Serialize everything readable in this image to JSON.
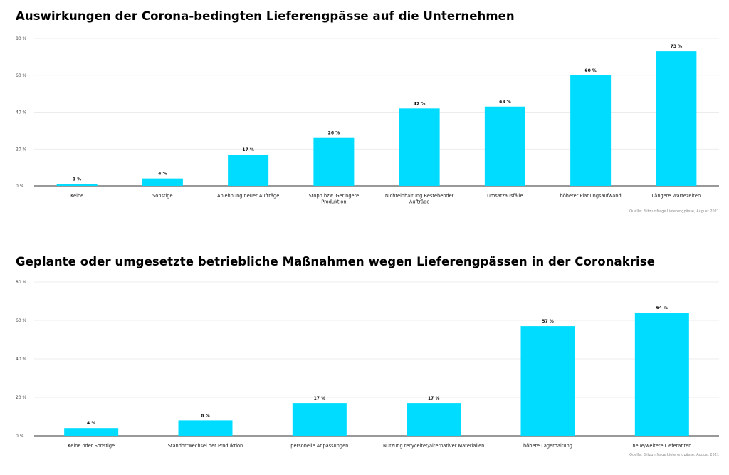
{
  "colors": {
    "bar": "#00dcff",
    "grid": "#e6e6e6",
    "axis": "#333333"
  },
  "chart_data": [
    {
      "type": "bar",
      "title": "Auswirkungen der Corona-bedingten Lieferengpässe auf die Unternehmen",
      "source": "Quelle: Blitzumfrage Lieferengpässe, August 2021",
      "categories": [
        "Keine",
        "Sonstige",
        "Ablehnung neuer Aufträge",
        "Stopp bzw. Geringere Produktion",
        "Nichteinhaltung Bestehender Aufträge",
        "Umsatzausfälle",
        "höherer Planungsaufwand",
        "Längere Wartezeiten"
      ],
      "values": [
        1,
        4,
        17,
        26,
        42,
        43,
        60,
        73
      ],
      "value_labels": [
        "1 %",
        "4 %",
        "17 %",
        "26 %",
        "42 %",
        "43 %",
        "60 %",
        "73 %"
      ],
      "yticks": [
        "0 %",
        "20 %",
        "40 %",
        "60 %",
        "80 %"
      ],
      "ylim": [
        0,
        80
      ],
      "grid": true
    },
    {
      "type": "bar",
      "title": "Geplante oder umgesetzte betriebliche Maßnahmen wegen Lieferengpässen in der Coronakrise",
      "source": "Quelle: Blitzumfrage Lieferengpässe, August 2021",
      "categories": [
        "Keine oder Sonstige",
        "Standortwechsel der Produktion",
        "personelle Anpassungen",
        "Nutzung recycelter/alternativer Materialien",
        "höhere Lagerhaltung",
        "neue/weitere Lieferanten"
      ],
      "values": [
        4,
        8,
        17,
        17,
        57,
        64
      ],
      "value_labels": [
        "4 %",
        "8 %",
        "17 %",
        "17 %",
        "57 %",
        "64 %"
      ],
      "yticks": [
        "0 %",
        "20 %",
        "40 %",
        "60 %",
        "80 %"
      ],
      "ylim": [
        0,
        80
      ],
      "grid": true
    }
  ]
}
